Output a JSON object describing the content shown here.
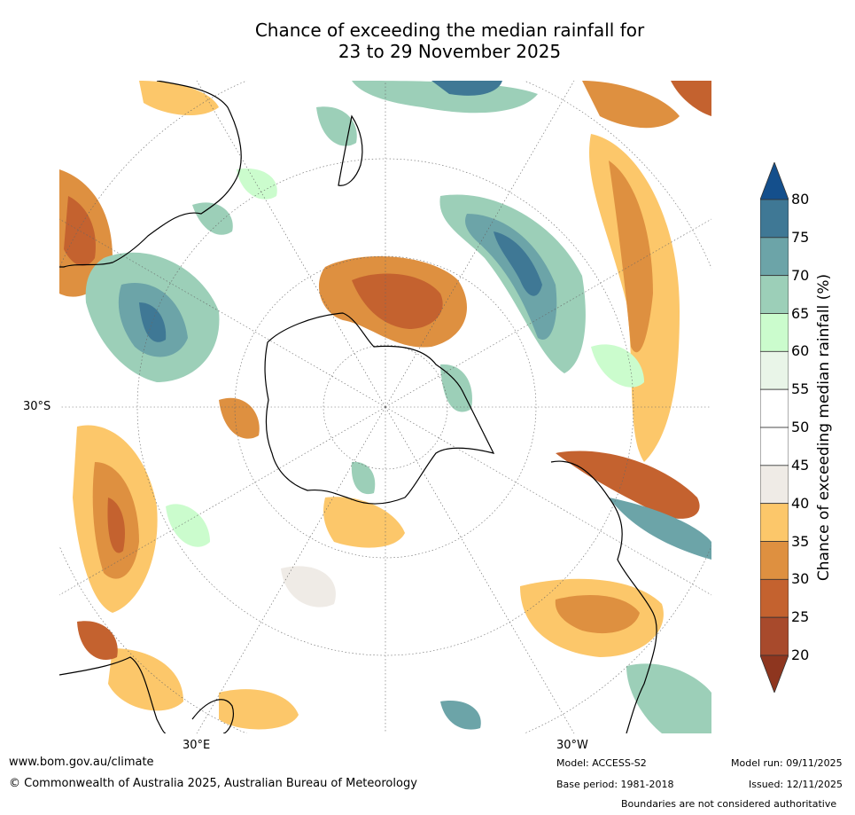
{
  "title": {
    "line1": "Chance of exceeding the median rainfall for",
    "line2": "23 to 29 November 2025"
  },
  "map": {
    "projection": "south-polar-stereographic",
    "lat_label": "30°S",
    "lon_labels": [
      "30°E",
      "30°W"
    ]
  },
  "legend": {
    "title": "Chance of exceeding median rainfall (%)",
    "ticks": [
      "20",
      "25",
      "30",
      "35",
      "40",
      "45",
      "50",
      "55",
      "60",
      "65",
      "70",
      "75",
      "80"
    ],
    "colors": [
      "#8e361f",
      "#a84a2c",
      "#c4622f",
      "#de9040",
      "#fcc76a",
      "#efebe6",
      "#ffffff",
      "#ffffff",
      "#e9f5e8",
      "#cbfccd",
      "#9ccfb8",
      "#6ca4a8",
      "#3f7895",
      "#144f8c"
    ]
  },
  "footer": {
    "website": "www.bom.gov.au/climate",
    "copyright": "© Commonwealth of Australia 2025, Australian Bureau of Meteorology",
    "model": "Model: ACCESS-S2",
    "base_period": "Base period: 1981-2018",
    "model_run": "Model run: 09/11/2025",
    "issued": "Issued: 12/11/2025",
    "disclaimer": "Boundaries are not considered authoritative"
  }
}
